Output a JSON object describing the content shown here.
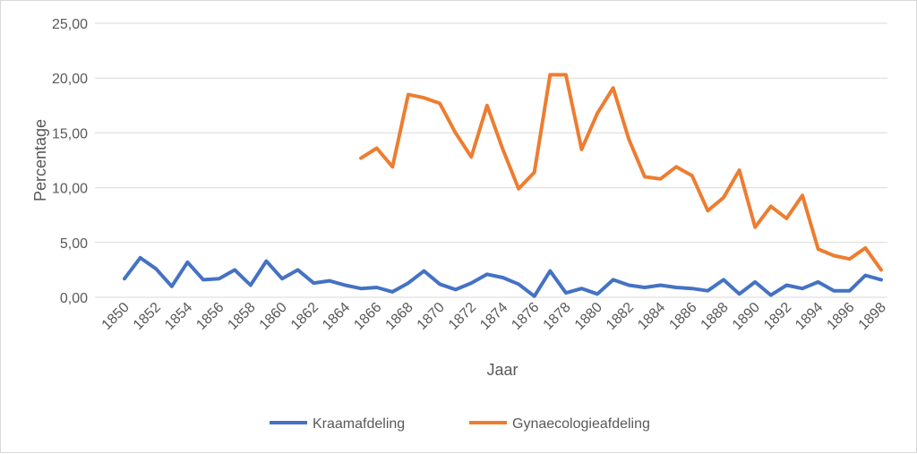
{
  "chart_data": {
    "type": "line",
    "title": "",
    "xlabel": "Jaar",
    "ylabel": "Percentage",
    "ylim": [
      0,
      25
    ],
    "yticks": [
      "0,00",
      "5,00",
      "10,00",
      "15,00",
      "20,00",
      "25,00"
    ],
    "ytick_values": [
      0,
      5,
      10,
      15,
      20,
      25
    ],
    "x": [
      1850,
      1851,
      1852,
      1853,
      1854,
      1855,
      1856,
      1857,
      1858,
      1859,
      1860,
      1861,
      1862,
      1863,
      1864,
      1865,
      1866,
      1867,
      1868,
      1869,
      1870,
      1871,
      1872,
      1873,
      1874,
      1875,
      1876,
      1877,
      1878,
      1879,
      1880,
      1881,
      1882,
      1883,
      1884,
      1885,
      1886,
      1887,
      1888,
      1889,
      1890,
      1891,
      1892,
      1893,
      1894,
      1895,
      1896,
      1897,
      1898
    ],
    "xtick_labels": [
      "1850",
      "1852",
      "1854",
      "1856",
      "1858",
      "1860",
      "1862",
      "1864",
      "1866",
      "1868",
      "1870",
      "1872",
      "1874",
      "1876",
      "1878",
      "1880",
      "1882",
      "1884",
      "1886",
      "1888",
      "1890",
      "1892",
      "1894",
      "1896",
      "1898"
    ],
    "grid": true,
    "legend_position": "bottom",
    "series": [
      {
        "name": "Kraamafdeling",
        "color": "#4472c4",
        "values": [
          1.7,
          3.6,
          2.6,
          1.0,
          3.2,
          1.6,
          1.7,
          2.5,
          1.1,
          3.3,
          1.7,
          2.5,
          1.3,
          1.5,
          1.1,
          0.8,
          0.9,
          0.5,
          1.3,
          2.4,
          1.2,
          0.7,
          1.3,
          2.1,
          1.8,
          1.2,
          0.1,
          2.4,
          0.4,
          0.8,
          0.3,
          1.6,
          1.1,
          0.9,
          1.1,
          0.9,
          0.8,
          0.6,
          1.6,
          0.3,
          1.4,
          0.2,
          1.1,
          0.8,
          1.4,
          0.6,
          0.6,
          2.0,
          1.6
        ]
      },
      {
        "name": "Gynaecologieafdeling",
        "color": "#ed7d31",
        "values": [
          null,
          null,
          null,
          null,
          null,
          null,
          null,
          null,
          null,
          null,
          null,
          null,
          null,
          null,
          null,
          12.7,
          13.6,
          11.9,
          18.5,
          18.2,
          17.7,
          15.0,
          12.8,
          17.5,
          13.5,
          9.9,
          11.4,
          20.3,
          20.3,
          13.5,
          16.8,
          19.1,
          14.4,
          11.0,
          10.8,
          11.9,
          11.1,
          7.9,
          9.1,
          11.6,
          6.4,
          8.3,
          7.2,
          9.3,
          4.4,
          3.8,
          3.5,
          4.5,
          2.5
        ]
      }
    ]
  }
}
